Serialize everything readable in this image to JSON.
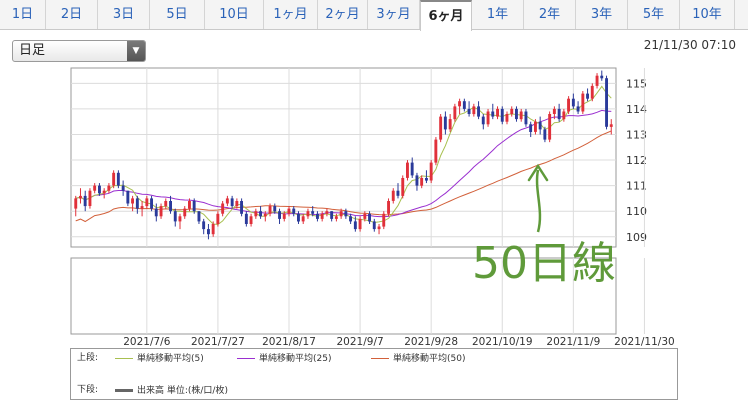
{
  "tabs": [
    {
      "label": "1日",
      "active": false
    },
    {
      "label": "2日",
      "active": false
    },
    {
      "label": "3日",
      "active": false
    },
    {
      "label": "5日",
      "active": false
    },
    {
      "label": "10日",
      "active": false
    },
    {
      "label": "1ヶ月",
      "active": false
    },
    {
      "label": "2ヶ月",
      "active": false
    },
    {
      "label": "3ヶ月",
      "active": false
    },
    {
      "label": "6ヶ月",
      "active": true
    },
    {
      "label": "1年",
      "active": false
    },
    {
      "label": "2年",
      "active": false
    },
    {
      "label": "3年",
      "active": false
    },
    {
      "label": "5年",
      "active": false
    },
    {
      "label": "10年",
      "active": false
    }
  ],
  "period_select": {
    "value": "日足"
  },
  "timestamp": "21/11/30 07:10",
  "legend": {
    "upper_label": "上段:",
    "lower_label": "下段:",
    "ma5": "単純移動平均(5)",
    "ma25": "単純移動平均(25)",
    "ma50": "単純移動平均(50)",
    "volume": "出来高 単位:(株/口/枚)"
  },
  "colors": {
    "up": "#e0303a",
    "down": "#2a3a9a",
    "ma5": "#a8c050",
    "ma25": "#9a2fd0",
    "ma50": "#d2603a",
    "annotation": "#5f9a3a"
  },
  "chart_data": {
    "type": "candlestick",
    "yticks": [
      109,
      110,
      111,
      112,
      113,
      114,
      115
    ],
    "ylim": [
      108.6,
      115.6
    ],
    "xtick_labels": [
      "2021/7/6",
      "2021/7/27",
      "2021/8/17",
      "2021/9/7",
      "2021/9/28",
      "2021/10/19",
      "2021/11/9",
      "2021/11/30"
    ],
    "xtick_index": [
      15,
      30,
      45,
      60,
      75,
      90,
      105,
      120
    ],
    "annotation": {
      "text": "50日線"
    },
    "ohlc": [
      [
        110.1,
        110.6,
        109.8,
        110.5
      ],
      [
        110.5,
        110.9,
        110.3,
        110.6
      ],
      [
        110.6,
        110.8,
        110.0,
        110.2
      ],
      [
        110.2,
        110.9,
        110.1,
        110.8
      ],
      [
        110.8,
        111.1,
        110.7,
        111.0
      ],
      [
        111.0,
        111.1,
        110.6,
        110.7
      ],
      [
        110.7,
        110.9,
        110.5,
        110.8
      ],
      [
        110.8,
        111.1,
        110.7,
        111.0
      ],
      [
        111.0,
        111.6,
        110.9,
        111.5
      ],
      [
        111.5,
        111.6,
        110.9,
        111.0
      ],
      [
        111.0,
        111.2,
        110.6,
        110.8
      ],
      [
        110.8,
        110.8,
        110.2,
        110.3
      ],
      [
        110.3,
        110.6,
        110.0,
        110.5
      ],
      [
        110.5,
        110.6,
        109.9,
        110.1
      ],
      [
        110.1,
        110.4,
        109.8,
        110.2
      ],
      [
        110.2,
        110.6,
        110.1,
        110.5
      ],
      [
        110.5,
        110.6,
        110.0,
        110.1
      ],
      [
        110.1,
        110.3,
        109.6,
        109.8
      ],
      [
        109.8,
        110.3,
        109.7,
        110.2
      ],
      [
        110.2,
        110.5,
        110.1,
        110.4
      ],
      [
        110.4,
        110.6,
        109.9,
        110.0
      ],
      [
        110.0,
        110.1,
        109.4,
        109.6
      ],
      [
        109.6,
        109.9,
        109.3,
        109.8
      ],
      [
        109.8,
        110.2,
        109.7,
        110.1
      ],
      [
        110.1,
        110.5,
        110.0,
        110.4
      ],
      [
        110.4,
        110.5,
        109.9,
        110.0
      ],
      [
        110.0,
        110.0,
        109.5,
        109.6
      ],
      [
        109.6,
        109.7,
        109.1,
        109.3
      ],
      [
        109.3,
        109.5,
        108.9,
        109.1
      ],
      [
        109.1,
        109.6,
        109.0,
        109.5
      ],
      [
        109.5,
        110.0,
        109.4,
        109.9
      ],
      [
        109.9,
        110.4,
        109.8,
        110.3
      ],
      [
        110.3,
        110.6,
        110.2,
        110.5
      ],
      [
        110.5,
        110.6,
        110.1,
        110.2
      ],
      [
        110.2,
        110.5,
        110.1,
        110.4
      ],
      [
        110.4,
        110.5,
        109.8,
        109.9
      ],
      [
        109.9,
        110.0,
        109.4,
        109.5
      ],
      [
        109.5,
        109.9,
        109.4,
        109.8
      ],
      [
        109.8,
        110.1,
        109.7,
        110.0
      ],
      [
        110.0,
        110.2,
        109.7,
        109.8
      ],
      [
        109.8,
        110.0,
        109.6,
        109.9
      ],
      [
        109.9,
        110.3,
        109.8,
        110.2
      ],
      [
        110.2,
        110.3,
        109.9,
        110.0
      ],
      [
        110.0,
        110.1,
        109.5,
        109.7
      ],
      [
        109.7,
        110.0,
        109.6,
        109.9
      ],
      [
        109.9,
        110.2,
        109.8,
        110.1
      ],
      [
        110.1,
        110.2,
        109.8,
        109.9
      ],
      [
        109.9,
        110.0,
        109.5,
        109.6
      ],
      [
        109.6,
        109.9,
        109.5,
        109.8
      ],
      [
        109.8,
        110.1,
        109.7,
        110.0
      ],
      [
        110.0,
        110.2,
        109.8,
        109.9
      ],
      [
        109.9,
        110.0,
        109.6,
        109.7
      ],
      [
        109.7,
        110.0,
        109.6,
        109.9
      ],
      [
        109.9,
        110.1,
        109.8,
        110.0
      ],
      [
        110.0,
        110.0,
        109.6,
        109.7
      ],
      [
        109.7,
        109.9,
        109.6,
        109.8
      ],
      [
        109.8,
        110.1,
        109.7,
        110.0
      ],
      [
        110.0,
        110.1,
        109.7,
        109.8
      ],
      [
        109.8,
        109.9,
        109.5,
        109.6
      ],
      [
        109.6,
        109.8,
        109.2,
        109.3
      ],
      [
        109.3,
        109.8,
        109.2,
        109.7
      ],
      [
        109.7,
        110.0,
        109.6,
        109.9
      ],
      [
        109.9,
        110.0,
        109.5,
        109.6
      ],
      [
        109.6,
        109.7,
        109.2,
        109.3
      ],
      [
        109.3,
        109.5,
        109.1,
        109.4
      ],
      [
        109.4,
        110.0,
        109.3,
        109.9
      ],
      [
        109.9,
        110.5,
        109.8,
        110.4
      ],
      [
        110.4,
        110.9,
        110.3,
        110.8
      ],
      [
        110.8,
        111.1,
        110.5,
        110.6
      ],
      [
        110.6,
        111.4,
        110.5,
        111.3
      ],
      [
        111.3,
        112.0,
        111.2,
        111.9
      ],
      [
        111.9,
        112.1,
        111.3,
        111.4
      ],
      [
        111.4,
        111.5,
        110.8,
        111.0
      ],
      [
        111.0,
        111.4,
        110.9,
        111.3
      ],
      [
        111.3,
        111.6,
        111.1,
        111.2
      ],
      [
        111.2,
        112.0,
        111.1,
        111.9
      ],
      [
        111.9,
        112.9,
        111.8,
        112.8
      ],
      [
        112.8,
        113.8,
        112.7,
        113.7
      ],
      [
        113.7,
        113.9,
        113.0,
        113.2
      ],
      [
        113.2,
        113.8,
        113.1,
        113.6
      ],
      [
        113.6,
        114.2,
        113.5,
        114.1
      ],
      [
        114.1,
        114.4,
        113.8,
        114.3
      ],
      [
        114.3,
        114.4,
        113.9,
        114.0
      ],
      [
        114.0,
        114.3,
        113.7,
        113.8
      ],
      [
        113.8,
        114.2,
        113.7,
        114.1
      ],
      [
        114.1,
        114.3,
        113.6,
        113.7
      ],
      [
        113.7,
        113.8,
        113.2,
        113.4
      ],
      [
        113.4,
        114.0,
        113.3,
        113.9
      ],
      [
        113.9,
        114.2,
        113.6,
        113.7
      ],
      [
        113.7,
        114.1,
        113.6,
        114.0
      ],
      [
        114.0,
        114.1,
        113.4,
        113.5
      ],
      [
        113.5,
        113.9,
        113.4,
        113.8
      ],
      [
        113.8,
        114.1,
        113.7,
        114.0
      ],
      [
        114.0,
        114.1,
        113.5,
        113.6
      ],
      [
        113.6,
        114.0,
        113.5,
        113.9
      ],
      [
        113.9,
        114.0,
        113.3,
        113.4
      ],
      [
        113.4,
        113.5,
        112.9,
        113.1
      ],
      [
        113.1,
        113.6,
        113.0,
        113.5
      ],
      [
        113.5,
        113.7,
        113.0,
        113.2
      ],
      [
        113.2,
        113.3,
        112.7,
        112.8
      ],
      [
        112.8,
        113.9,
        112.7,
        113.8
      ],
      [
        113.8,
        114.1,
        113.6,
        114.0
      ],
      [
        114.0,
        114.2,
        113.5,
        113.6
      ],
      [
        113.6,
        114.0,
        113.5,
        113.9
      ],
      [
        113.9,
        114.5,
        113.8,
        114.4
      ],
      [
        114.4,
        114.6,
        114.0,
        114.1
      ],
      [
        114.1,
        114.3,
        113.8,
        113.9
      ],
      [
        113.9,
        114.7,
        113.8,
        114.6
      ],
      [
        114.6,
        114.8,
        114.3,
        114.4
      ],
      [
        114.4,
        115.0,
        114.3,
        114.9
      ],
      [
        114.9,
        115.4,
        114.8,
        115.3
      ],
      [
        115.3,
        115.5,
        115.1,
        115.2
      ],
      [
        115.2,
        115.3,
        113.2,
        113.3
      ],
      [
        113.3,
        113.6,
        113.0,
        113.4
      ]
    ]
  }
}
